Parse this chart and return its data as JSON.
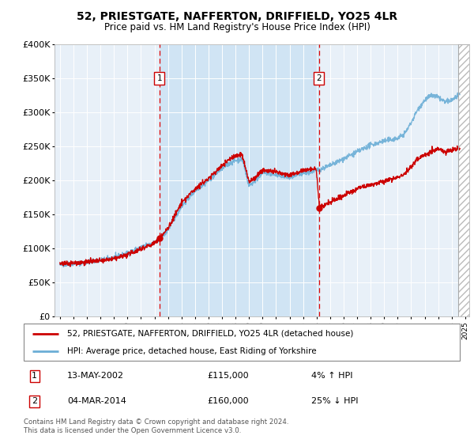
{
  "title": "52, PRIESTGATE, NAFFERTON, DRIFFIELD, YO25 4LR",
  "subtitle": "Price paid vs. HM Land Registry's House Price Index (HPI)",
  "legend_label_red": "52, PRIESTGATE, NAFFERTON, DRIFFIELD, YO25 4LR (detached house)",
  "legend_label_blue": "HPI: Average price, detached house, East Riding of Yorkshire",
  "transaction1_date": "13-MAY-2002",
  "transaction1_price": 115000,
  "transaction1_pct": "4% ↑ HPI",
  "transaction2_date": "04-MAR-2014",
  "transaction2_price": 160000,
  "transaction2_pct": "25% ↓ HPI",
  "footer": "Contains HM Land Registry data © Crown copyright and database right 2024.\nThis data is licensed under the Open Government Licence v3.0.",
  "ylim": [
    0,
    400000
  ],
  "start_year": 1995,
  "end_year": 2025,
  "hpi_color": "#6baed6",
  "price_color": "#cc0000",
  "bg_color": "#e8f0f8",
  "span_color": "#d0e4f4",
  "transaction1_year": 2002.37,
  "transaction2_year": 2014.17,
  "hatch_year": 2024.5
}
